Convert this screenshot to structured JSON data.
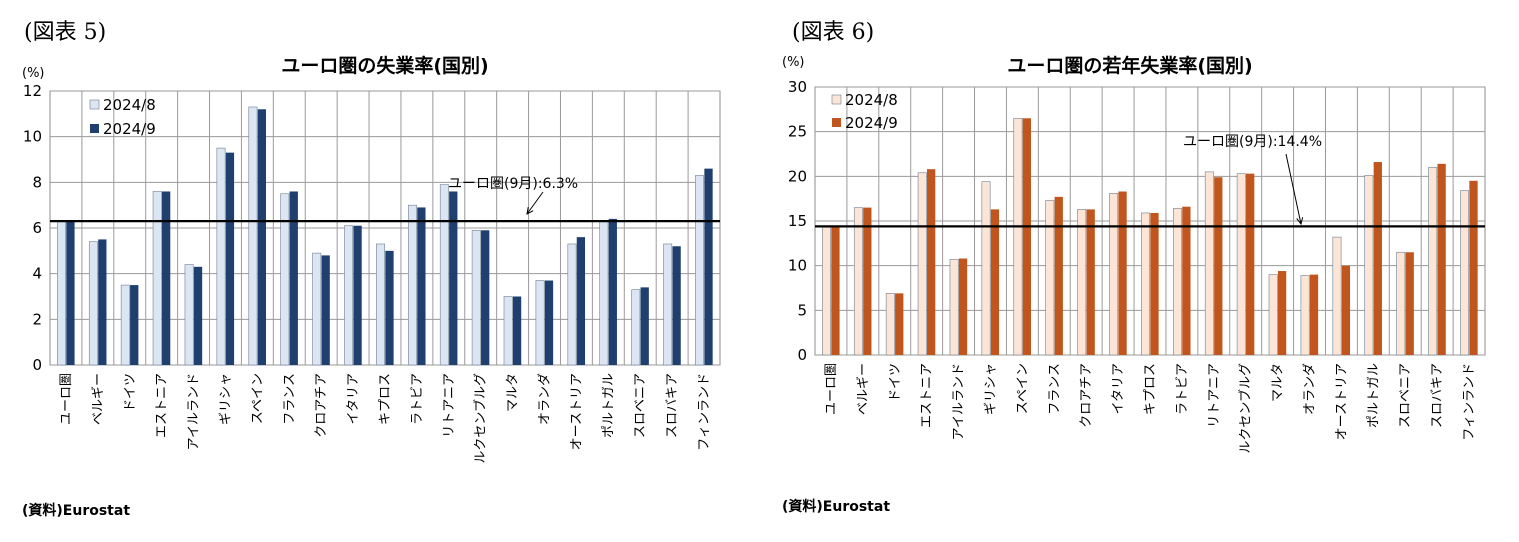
{
  "figures": {
    "left_label": "(図表 5)",
    "right_label": "(図表 6)",
    "left_source": "(資料)Eurostat",
    "right_source": "(資料)Eurostat"
  },
  "chart_data": [
    {
      "type": "bar",
      "title": "ユーロ圏の失業率(国別)",
      "unit": "(%)",
      "xlabel": "",
      "ylabel": "",
      "ylim": [
        0,
        12
      ],
      "yticks": [
        0,
        2,
        4,
        6,
        8,
        10,
        12
      ],
      "grid": true,
      "legend_position": "top-left",
      "categories": [
        "ユーロ圏",
        "ベルギー",
        "ドイツ",
        "エストニア",
        "アイルランド",
        "ギリシャ",
        "スペイン",
        "フランス",
        "クロアチア",
        "イタリア",
        "キプロス",
        "ラトビア",
        "リトアニア",
        "ルクセンブルグ",
        "マルタ",
        "オランダ",
        "オーストリア",
        "ポルトガル",
        "スロベニア",
        "スロバキア",
        "フィンランド"
      ],
      "series": [
        {
          "name": "2024/8",
          "color": "#dce6f2",
          "values": [
            6.3,
            5.4,
            3.5,
            7.6,
            4.4,
            9.5,
            11.3,
            7.5,
            4.9,
            6.1,
            5.3,
            7.0,
            7.9,
            5.9,
            3.0,
            3.7,
            5.3,
            6.3,
            3.3,
            5.3,
            8.3
          ]
        },
        {
          "name": "2024/9",
          "color": "#1f3f6e",
          "values": [
            6.3,
            5.5,
            3.5,
            7.6,
            4.3,
            9.3,
            11.2,
            7.6,
            4.8,
            6.1,
            5.0,
            6.9,
            7.6,
            5.9,
            3.0,
            3.7,
            5.6,
            6.4,
            3.4,
            5.2,
            8.6
          ]
        }
      ],
      "reference_line": {
        "value": 6.3,
        "label": "ユーロ圏(9月):6.3%"
      }
    },
    {
      "type": "bar",
      "title": "ユーロ圏の若年失業率(国別)",
      "unit": "(%)",
      "xlabel": "",
      "ylabel": "",
      "ylim": [
        0,
        30
      ],
      "yticks": [
        0,
        5,
        10,
        15,
        20,
        25,
        30
      ],
      "grid": true,
      "legend_position": "top-left",
      "categories": [
        "ユーロ圏",
        "ベルギー",
        "ドイツ",
        "エストニア",
        "アイルランド",
        "ギリシャ",
        "スペイン",
        "フランス",
        "クロアチア",
        "イタリア",
        "キプロス",
        "ラトビア",
        "リトアニア",
        "ルクセンブルグ",
        "マルタ",
        "オランダ",
        "オーストリア",
        "ポルトガル",
        "スロベニア",
        "スロバキア",
        "フィンランド"
      ],
      "series": [
        {
          "name": "2024/8",
          "color": "#fbe5d6",
          "values": [
            14.3,
            16.5,
            6.9,
            20.4,
            10.7,
            19.4,
            26.5,
            17.3,
            16.3,
            18.1,
            15.9,
            16.4,
            20.5,
            20.3,
            9.0,
            8.9,
            13.2,
            20.1,
            11.5,
            21.0,
            18.4
          ]
        },
        {
          "name": "2024/9",
          "color": "#c0561d",
          "values": [
            14.4,
            16.5,
            6.9,
            20.8,
            10.8,
            16.3,
            26.5,
            17.7,
            16.3,
            18.3,
            15.9,
            16.6,
            19.9,
            20.3,
            9.4,
            9.0,
            10.0,
            21.6,
            11.5,
            21.4,
            19.5
          ]
        }
      ],
      "reference_line": {
        "value": 14.4,
        "label": "ユーロ圏(9月):14.4%"
      }
    }
  ]
}
